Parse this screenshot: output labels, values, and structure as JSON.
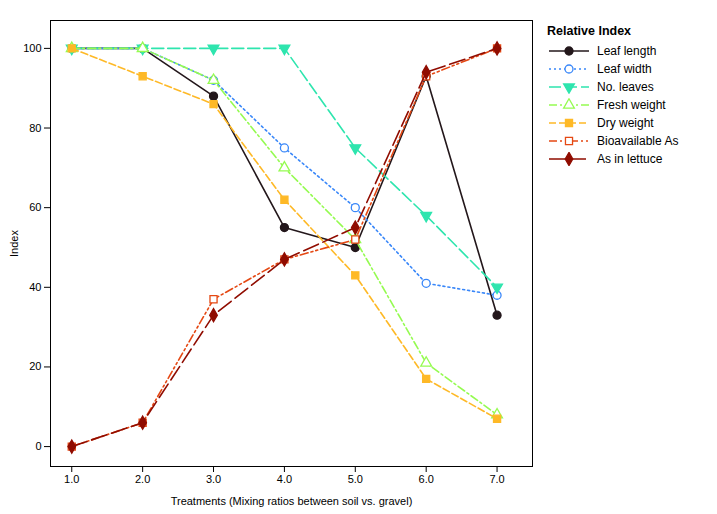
{
  "chart_data": {
    "type": "line",
    "x": [
      1,
      2,
      3,
      4,
      5,
      6,
      7
    ],
    "series": [
      {
        "name": "Leaf length",
        "values": [
          100,
          100,
          88,
          55,
          50,
          93,
          33
        ],
        "marker": "circle",
        "line_style": "solid"
      },
      {
        "name": "Leaf width",
        "values": [
          100,
          100,
          92,
          75,
          60,
          41,
          38
        ],
        "marker": "circle-open",
        "line_style": "dotted"
      },
      {
        "name": "No. leaves",
        "values": [
          100,
          100,
          100,
          100,
          75,
          58,
          40
        ],
        "marker": "triangle-down",
        "line_style": "dashed"
      },
      {
        "name": "Fresh weight",
        "values": [
          100,
          100,
          92,
          70,
          52,
          21,
          8
        ],
        "marker": "triangle-up-open",
        "line_style": "dashdot"
      },
      {
        "name": "Dry weight",
        "values": [
          100,
          93,
          86,
          62,
          43,
          17,
          7
        ],
        "marker": "square",
        "line_style": "shortdash"
      },
      {
        "name": "Bioavailable As",
        "values": [
          0,
          6,
          37,
          47,
          52,
          93,
          100
        ],
        "marker": "square-open",
        "line_style": "dashdotdot"
      },
      {
        "name": "As in lettuce",
        "values": [
          0,
          6,
          33,
          47,
          55,
          94,
          100
        ],
        "marker": "diamond",
        "line_style": "longdash"
      }
    ],
    "xlabel": "Treatments (Mixing ratios between soil vs. gravel)",
    "ylabel": "Index",
    "legend_title": "Relative Index",
    "legend": "right",
    "xlim": [
      0.7,
      7.5
    ],
    "ylim": [
      -5,
      107
    ],
    "xticks": [
      1,
      2,
      3,
      4,
      5,
      6,
      7
    ],
    "yticks": [
      0,
      20,
      40,
      60,
      80,
      100
    ],
    "grid": false
  }
}
